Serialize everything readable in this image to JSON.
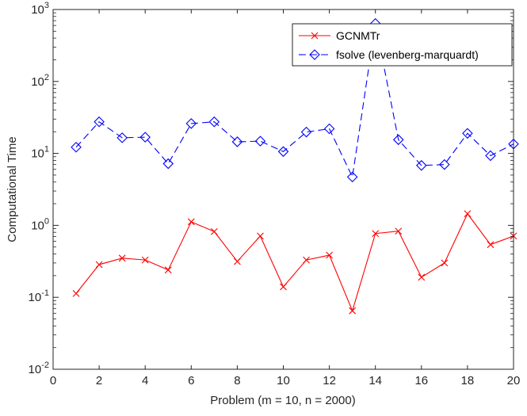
{
  "chart_data": {
    "type": "line",
    "title": "",
    "xlabel": "Problem (m = 10, n = 2000)",
    "ylabel": "Computational Time",
    "xlim": [
      0,
      20
    ],
    "ylim": [
      0.01,
      1000
    ],
    "yscale": "log",
    "grid": false,
    "legend_position": "top-right",
    "x_ticks": [
      0,
      2,
      4,
      6,
      8,
      10,
      12,
      14,
      16,
      18,
      20
    ],
    "y_ticks": [
      {
        "value": 0.01,
        "base": "10",
        "exp": "-2"
      },
      {
        "value": 0.1,
        "base": "10",
        "exp": "-1"
      },
      {
        "value": 1,
        "base": "10",
        "exp": "0"
      },
      {
        "value": 10,
        "base": "10",
        "exp": "1"
      },
      {
        "value": 100,
        "base": "10",
        "exp": "2"
      },
      {
        "value": 1000,
        "base": "10",
        "exp": "3"
      }
    ],
    "x": [
      1,
      2,
      3,
      4,
      5,
      6,
      7,
      8,
      9,
      10,
      11,
      12,
      13,
      14,
      15,
      16,
      17,
      18,
      19,
      20
    ],
    "series": [
      {
        "name": "GCNMTr",
        "color": "#ff0000",
        "marker": "x",
        "line": "solid",
        "values": [
          0.113,
          0.285,
          0.35,
          0.33,
          0.24,
          1.12,
          0.82,
          0.315,
          0.71,
          0.14,
          0.33,
          0.385,
          0.065,
          0.77,
          0.83,
          0.19,
          0.3,
          1.45,
          0.54,
          0.71
        ]
      },
      {
        "name": "fsolve (levenberg-marquardt)",
        "color": "#0000ff",
        "marker": "diamond",
        "line": "dashed",
        "values": [
          12.2,
          27.5,
          16.5,
          16.8,
          7.2,
          26.0,
          27.5,
          14.5,
          14.8,
          10.6,
          19.8,
          22.0,
          4.7,
          640,
          15.5,
          6.8,
          7.0,
          19.0,
          9.3,
          13.5
        ]
      }
    ]
  }
}
